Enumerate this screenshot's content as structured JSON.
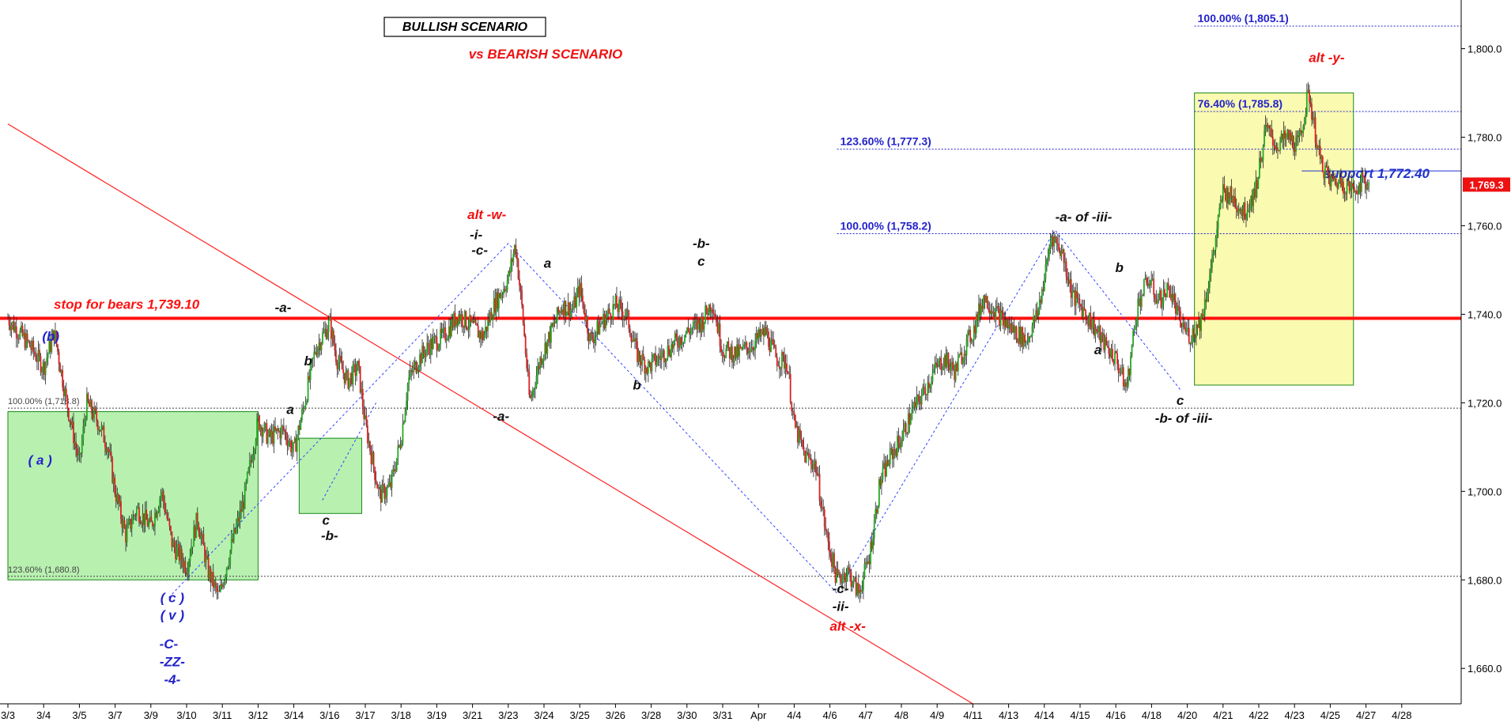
{
  "chart_data": {
    "type": "line",
    "subtype": "candlestick",
    "x_ticks": [
      "3/3",
      "3/4",
      "3/5",
      "3/7",
      "3/9",
      "3/10",
      "3/11",
      "3/12",
      "3/14",
      "3/16",
      "3/17",
      "3/18",
      "3/19",
      "3/21",
      "3/23",
      "3/24",
      "3/25",
      "3/26",
      "3/28",
      "3/30",
      "3/31",
      "Apr",
      "4/4",
      "4/6",
      "4/7",
      "4/8",
      "4/9",
      "4/11",
      "4/13",
      "4/14",
      "4/15",
      "4/16",
      "4/18",
      "4/20",
      "4/21",
      "4/22",
      "4/23",
      "4/25",
      "4/27",
      "4/28"
    ],
    "y_ticks": [
      1660,
      1680,
      1700,
      1720,
      1740,
      1760,
      1780,
      1800
    ],
    "y_tick_labels": [
      "1,660.0",
      "1,680.0",
      "1,700.0",
      "1,720.0",
      "1,740.0",
      "1,760.0",
      "1,780.0",
      "1,800.0"
    ],
    "ylim": [
      1652,
      1811
    ],
    "last_price": 1769.3,
    "last_price_label": "1,769.3",
    "price_path": [
      [
        0.0,
        1739
      ],
      [
        0.6,
        1733
      ],
      [
        1.0,
        1728
      ],
      [
        1.3,
        1736
      ],
      [
        1.6,
        1722
      ],
      [
        2.0,
        1706
      ],
      [
        2.2,
        1720
      ],
      [
        2.5,
        1716
      ],
      [
        2.8,
        1710
      ],
      [
        3.0,
        1700
      ],
      [
        3.3,
        1690
      ],
      [
        3.6,
        1696
      ],
      [
        4.0,
        1692
      ],
      [
        4.3,
        1700
      ],
      [
        4.6,
        1688
      ],
      [
        5.0,
        1683
      ],
      [
        5.3,
        1694
      ],
      [
        5.6,
        1682
      ],
      [
        5.9,
        1676
      ],
      [
        6.2,
        1686
      ],
      [
        6.6,
        1698
      ],
      [
        7.0,
        1716
      ],
      [
        7.3,
        1712
      ],
      [
        7.7,
        1714
      ],
      [
        8.0,
        1709
      ],
      [
        8.3,
        1720
      ],
      [
        8.6,
        1732
      ],
      [
        9.0,
        1738
      ],
      [
        9.2,
        1730
      ],
      [
        9.5,
        1725
      ],
      [
        9.8,
        1728
      ],
      [
        10.0,
        1715
      ],
      [
        10.2,
        1707
      ],
      [
        10.4,
        1699
      ],
      [
        10.7,
        1701
      ],
      [
        11.0,
        1712
      ],
      [
        11.2,
        1725
      ],
      [
        11.5,
        1730
      ],
      [
        11.8,
        1733
      ],
      [
        12.2,
        1735
      ],
      [
        12.6,
        1740
      ],
      [
        13.0,
        1737
      ],
      [
        13.3,
        1735
      ],
      [
        13.6,
        1742
      ],
      [
        14.0,
        1748
      ],
      [
        14.2,
        1756
      ],
      [
        14.4,
        1740
      ],
      [
        14.6,
        1720
      ],
      [
        14.9,
        1730
      ],
      [
        15.2,
        1736
      ],
      [
        15.5,
        1742
      ],
      [
        15.8,
        1741
      ],
      [
        16.0,
        1746
      ],
      [
        16.3,
        1734
      ],
      [
        16.6,
        1738
      ],
      [
        17.0,
        1742
      ],
      [
        17.3,
        1740
      ],
      [
        17.6,
        1731
      ],
      [
        17.9,
        1728
      ],
      [
        18.2,
        1730
      ],
      [
        18.6,
        1733
      ],
      [
        19.0,
        1736
      ],
      [
        19.4,
        1738
      ],
      [
        19.7,
        1743
      ],
      [
        20.0,
        1732
      ],
      [
        20.4,
        1731
      ],
      [
        20.8,
        1733
      ],
      [
        21.2,
        1736
      ],
      [
        21.5,
        1730
      ],
      [
        21.8,
        1729
      ],
      [
        22.0,
        1715
      ],
      [
        22.3,
        1708
      ],
      [
        22.6,
        1706
      ],
      [
        22.9,
        1690
      ],
      [
        23.2,
        1680
      ],
      [
        23.5,
        1682
      ],
      [
        23.8,
        1677
      ],
      [
        24.1,
        1685
      ],
      [
        24.4,
        1702
      ],
      [
        24.7,
        1708
      ],
      [
        25.0,
        1712
      ],
      [
        25.3,
        1718
      ],
      [
        25.6,
        1722
      ],
      [
        25.9,
        1727
      ],
      [
        26.2,
        1730
      ],
      [
        26.5,
        1727
      ],
      [
        26.8,
        1733
      ],
      [
        27.0,
        1736
      ],
      [
        27.3,
        1744
      ],
      [
        27.6,
        1741
      ],
      [
        27.9,
        1738
      ],
      [
        28.2,
        1736
      ],
      [
        28.5,
        1734
      ],
      [
        28.8,
        1740
      ],
      [
        29.0,
        1748
      ],
      [
        29.2,
        1758
      ],
      [
        29.5,
        1754
      ],
      [
        29.8,
        1744
      ],
      [
        30.1,
        1741
      ],
      [
        30.4,
        1737
      ],
      [
        30.7,
        1733
      ],
      [
        31.0,
        1730
      ],
      [
        31.3,
        1723
      ],
      [
        31.6,
        1742
      ],
      [
        31.9,
        1748
      ],
      [
        32.2,
        1743
      ],
      [
        32.5,
        1746
      ],
      [
        32.8,
        1738
      ],
      [
        33.1,
        1735
      ],
      [
        33.4,
        1739
      ],
      [
        33.7,
        1752
      ],
      [
        34.0,
        1768
      ],
      [
        34.3,
        1766
      ],
      [
        34.6,
        1763
      ],
      [
        34.9,
        1768
      ],
      [
        35.2,
        1782
      ],
      [
        35.5,
        1778
      ],
      [
        35.8,
        1780
      ],
      [
        36.1,
        1778
      ],
      [
        36.4,
        1790
      ],
      [
        36.7,
        1775
      ],
      [
        37.0,
        1770
      ],
      [
        37.3,
        1770
      ],
      [
        37.6,
        1768
      ],
      [
        37.9,
        1770
      ],
      [
        38.1,
        1769.3
      ]
    ],
    "hlines": [
      {
        "label": "100.00% (1,805.1)",
        "value": 1805.1,
        "color": "#2222cc",
        "from_x": 33.2
      },
      {
        "label": "76.40% (1,785.8)",
        "value": 1785.8,
        "color": "#2222cc",
        "from_x": 33.2
      },
      {
        "label": "123.60% (1,777.3)",
        "value": 1777.3,
        "color": "#2222cc",
        "from_x": 23.2
      },
      {
        "label": "support 1,772.40",
        "value": 1772.4,
        "color": "#2222cc",
        "from_x": 36.7
      },
      {
        "label": "100.00% (1,758.2)",
        "value": 1758.2,
        "color": "#2222cc",
        "from_x": 23.2
      },
      {
        "label": "100.00% (1,718.8)",
        "value": 1718.8,
        "color": "#444444",
        "from_x": 0
      },
      {
        "label": "123.60% (1,680.8)",
        "value": 1680.8,
        "color": "#444444",
        "from_x": 0
      },
      {
        "label": "stop for bears 1,739.10",
        "value": 1739.1,
        "color": "#ff1111",
        "from_x": 0
      }
    ],
    "boxes": [
      {
        "x0": 0,
        "x1": 7.0,
        "y0": 1680,
        "y1": 1718,
        "fill": "#b8f0b0",
        "stroke": "#1a8a1a"
      },
      {
        "x0": 8.15,
        "x1": 9.9,
        "y0": 1695,
        "y1": 1712,
        "fill": "#b8f0b0",
        "stroke": "#1a8a1a"
      },
      {
        "x0": 33.2,
        "x1": 37.65,
        "y0": 1724,
        "y1": 1790,
        "fill": "#fafab0",
        "stroke": "#1a8a1a"
      }
    ],
    "title_box": "BULLISH SCENARIO",
    "subtitle": "vs BEARISH SCENARIO",
    "annotations": [
      {
        "text": "alt -w-",
        "x": 13.4,
        "y": 1761.5,
        "color": "red"
      },
      {
        "text": "-i-",
        "x": 13.1,
        "y": 1757.0,
        "color": "black"
      },
      {
        "text": "-c-",
        "x": 13.2,
        "y": 1753.5,
        "color": "black"
      },
      {
        "text": "-a-",
        "x": 7.7,
        "y": 1740.5,
        "color": "black"
      },
      {
        "text": "(b)",
        "x": 1.2,
        "y": 1734.0,
        "color": "blue"
      },
      {
        "text": "b",
        "x": 8.4,
        "y": 1728.5,
        "color": "black"
      },
      {
        "text": "a",
        "x": 7.9,
        "y": 1717.5,
        "color": "black"
      },
      {
        "text": "( a )",
        "x": 0.9,
        "y": 1706.0,
        "color": "blue"
      },
      {
        "text": "c",
        "x": 8.9,
        "y": 1692.5,
        "color": "black"
      },
      {
        "text": "-b-",
        "x": 9.0,
        "y": 1689.0,
        "color": "black"
      },
      {
        "text": "-a-",
        "x": 13.8,
        "y": 1716.0,
        "color": "black"
      },
      {
        "text": "a",
        "x": 15.1,
        "y": 1750.5,
        "color": "black"
      },
      {
        "text": "-b-",
        "x": 19.4,
        "y": 1755.0,
        "color": "black"
      },
      {
        "text": "c",
        "x": 19.4,
        "y": 1751.0,
        "color": "black"
      },
      {
        "text": "b",
        "x": 17.6,
        "y": 1723.0,
        "color": "black"
      },
      {
        "text": "-a- of -iii-",
        "x": 30.1,
        "y": 1761.0,
        "color": "black"
      },
      {
        "text": "b",
        "x": 31.1,
        "y": 1749.5,
        "color": "black"
      },
      {
        "text": "a",
        "x": 30.5,
        "y": 1731.0,
        "color": "black"
      },
      {
        "text": "c",
        "x": 32.8,
        "y": 1719.5,
        "color": "black"
      },
      {
        "text": "-b- of -iii-",
        "x": 32.9,
        "y": 1715.5,
        "color": "black"
      },
      {
        "text": "alt -y-",
        "x": 36.9,
        "y": 1797.0,
        "color": "red"
      },
      {
        "text": "-c-",
        "x": 23.3,
        "y": 1677.0,
        "color": "black"
      },
      {
        "text": "-ii-",
        "x": 23.3,
        "y": 1673.0,
        "color": "black"
      },
      {
        "text": "alt -x-",
        "x": 23.5,
        "y": 1668.5,
        "color": "red"
      },
      {
        "text": "( c )",
        "x": 4.6,
        "y": 1675.0,
        "color": "blue"
      },
      {
        "text": "( v )",
        "x": 4.6,
        "y": 1671.0,
        "color": "blue"
      },
      {
        "text": "-C-",
        "x": 4.5,
        "y": 1664.5,
        "color": "blue"
      },
      {
        "text": "-ZZ-",
        "x": 4.6,
        "y": 1660.5,
        "color": "blue"
      },
      {
        "text": "-4-",
        "x": 4.6,
        "y": 1656.5,
        "color": "blue"
      }
    ],
    "guide_lines": [
      {
        "points": [
          [
            4.5,
            1676
          ],
          [
            7.1,
            1698
          ],
          [
            14.0,
            1756
          ],
          [
            23.2,
            1677
          ],
          [
            29.3,
            1759
          ],
          [
            32.8,
            1723
          ]
        ],
        "color": "#3344ff",
        "style": "dotted"
      },
      {
        "points": [
          [
            8.8,
            1698
          ],
          [
            10.3,
            1720
          ]
        ],
        "color": "#3344ff",
        "style": "dotted"
      }
    ],
    "trend_line": {
      "points": [
        [
          0,
          1783
        ],
        [
          27.0,
          1652
        ]
      ],
      "color": "#ff2222"
    }
  }
}
